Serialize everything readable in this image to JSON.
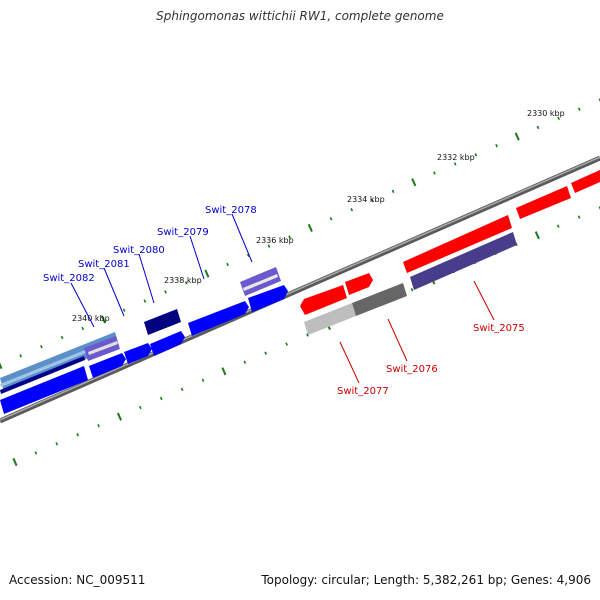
{
  "title": "Sphingomonas wittichii RW1, complete genome",
  "footer": {
    "accession": "Accession: NC_009511",
    "summary": "Topology: circular; Length: 5,382,261 bp; Genes: 4,906"
  },
  "colors": {
    "forward_strand": "#0000ff",
    "reverse_strand": "#ff0000",
    "backbone": "#808080",
    "ticks": "#1a7a1a"
  },
  "ruler": [
    {
      "label": "2330 kbp"
    },
    {
      "label": "2332 kbp"
    },
    {
      "label": "2334 kbp"
    },
    {
      "label": "2336 kbp"
    },
    {
      "label": "2338 kbp"
    },
    {
      "label": "2340 kbp"
    }
  ],
  "gene_labels": [
    {
      "text": "Swit_2078",
      "strand": "forward"
    },
    {
      "text": "Swit_2079",
      "strand": "forward"
    },
    {
      "text": "Swit_2080",
      "strand": "forward"
    },
    {
      "text": "Swit_2081",
      "strand": "forward"
    },
    {
      "text": "Swit_2082",
      "strand": "forward"
    },
    {
      "text": "Swit_2075",
      "strand": "reverse"
    },
    {
      "text": "Swit_2076",
      "strand": "reverse"
    },
    {
      "text": "Swit_2077",
      "strand": "reverse"
    }
  ]
}
